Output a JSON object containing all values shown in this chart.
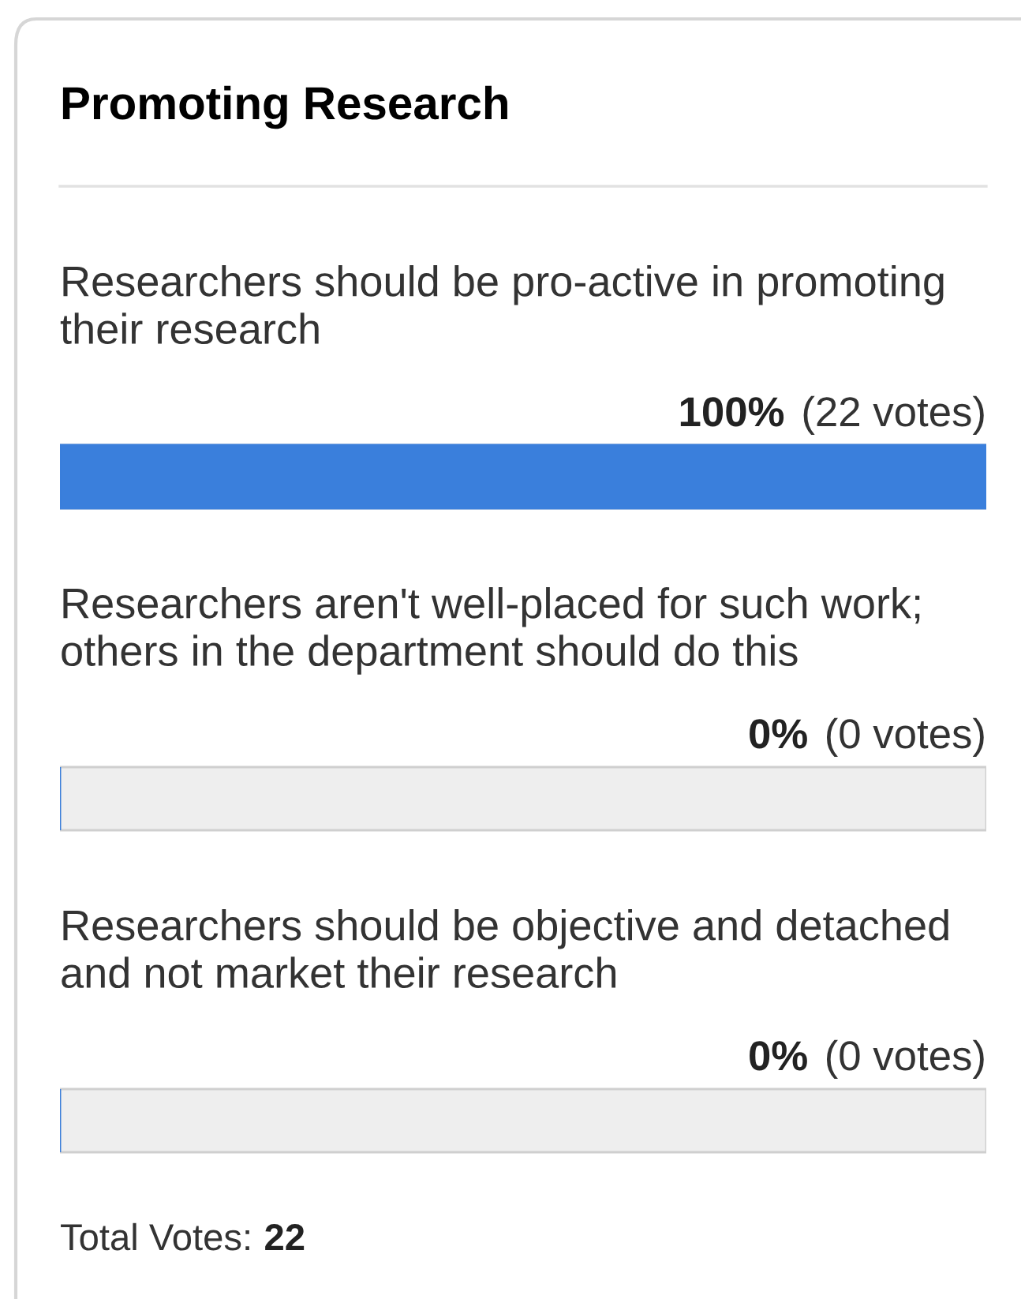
{
  "chart_data": {
    "type": "bar",
    "orientation": "horizontal",
    "title": "Promoting Research",
    "categories": [
      "Researchers should be pro-active in promoting their research",
      "Researchers aren't well-placed for such work; others in the department should do this",
      "Researchers should be objective and detached and not market their research"
    ],
    "values": [
      100,
      0,
      0
    ],
    "value_labels": [
      "100% (22 votes)",
      "0% (0 votes)",
      "0% (0 votes)"
    ],
    "color": "#3a7fdc",
    "annotations": [
      "Total Votes: 22"
    ]
  }
}
